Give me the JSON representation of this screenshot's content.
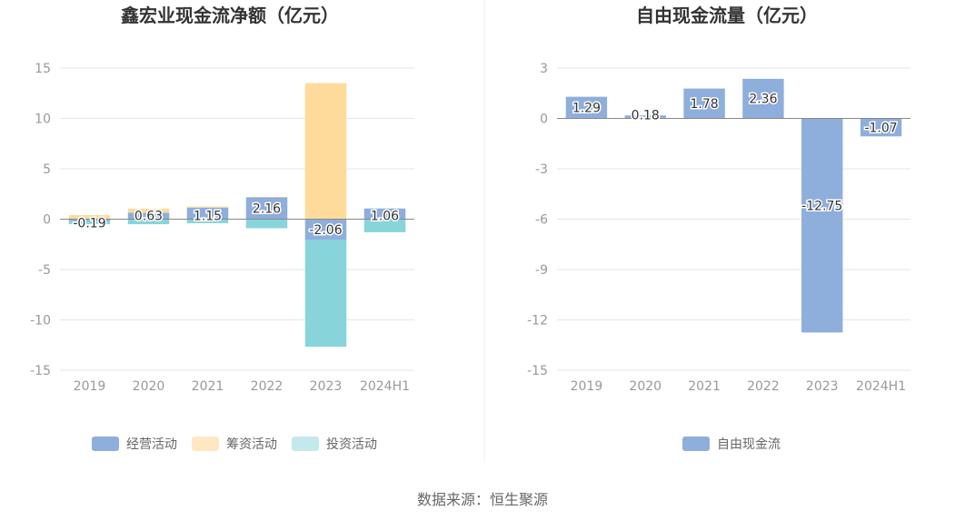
{
  "source": "数据来源：恒生聚源",
  "chart_data": [
    {
      "type": "bar",
      "stacked": true,
      "title": "鑫宏业现金流净额（亿元）",
      "categories": [
        "2019",
        "2020",
        "2021",
        "2022",
        "2023",
        "2024H1"
      ],
      "ylim": [
        -15,
        15
      ],
      "yticks": [
        15,
        10,
        5,
        0,
        -5,
        -10,
        -15
      ],
      "grid": true,
      "legend_position": "bottom",
      "series": [
        {
          "name": "经营活动",
          "color": "#8eaedb",
          "values": [
            -0.19,
            0.63,
            1.15,
            2.16,
            -2.06,
            1.06
          ]
        },
        {
          "name": "筹资活动",
          "color": "#fedb9a",
          "values": [
            0.4,
            0.4,
            0.1,
            0.05,
            13.5,
            0.0
          ]
        },
        {
          "name": "投资活动",
          "color": "#87d5da",
          "values": [
            -0.3,
            -0.5,
            -0.4,
            -0.9,
            -10.6,
            -1.3
          ]
        }
      ],
      "data_labels_series": "经营活动",
      "data_labels": [
        "-0.19",
        "0.63",
        "1.15",
        "2.16",
        "-2.06",
        "1.06"
      ]
    },
    {
      "type": "bar",
      "title": "自由现金流量（亿元）",
      "categories": [
        "2019",
        "2020",
        "2021",
        "2022",
        "2023",
        "2024H1"
      ],
      "ylim": [
        -15,
        3
      ],
      "yticks": [
        3,
        0,
        -3,
        -6,
        -9,
        -12,
        -15
      ],
      "grid": true,
      "legend_position": "bottom",
      "series": [
        {
          "name": "自由现金流",
          "color": "#8eaedb",
          "values": [
            1.29,
            0.18,
            1.78,
            2.36,
            -12.75,
            -1.07
          ]
        }
      ],
      "data_labels": [
        "1.29",
        "0.18",
        "1.78",
        "2.36",
        "-12.75",
        "-1.07"
      ]
    }
  ]
}
